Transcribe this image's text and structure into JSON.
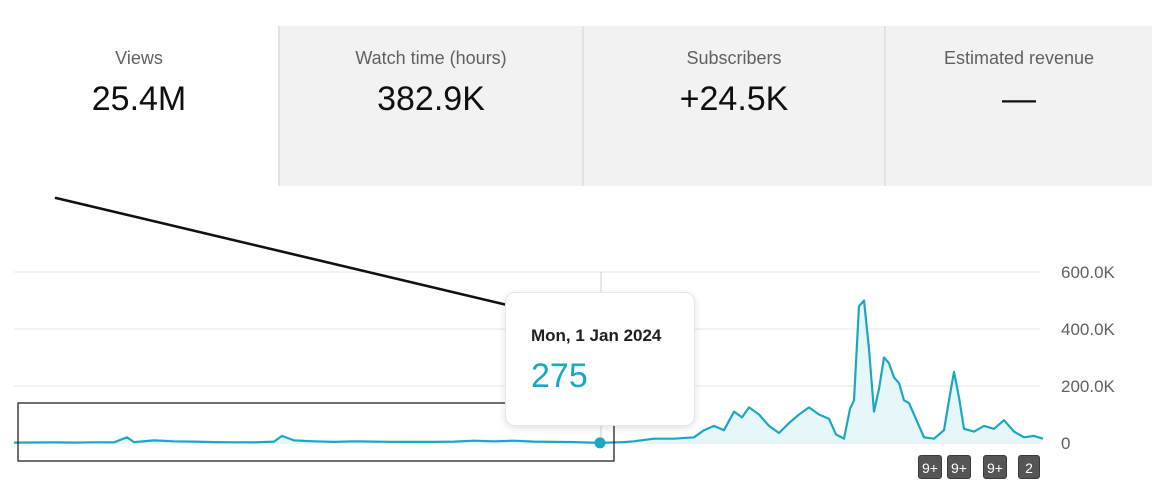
{
  "metrics": [
    {
      "label": "Views",
      "value": "25.4M"
    },
    {
      "label": "Watch time (hours)",
      "value": "382.9K"
    },
    {
      "label": "Subscribers",
      "value": "+24.5K"
    },
    {
      "label": "Estimated revenue",
      "value": "—"
    }
  ],
  "tooltip": {
    "date": "Mon, 1 Jan 2024",
    "value": "275"
  },
  "badges": [
    "9+",
    "9+",
    "9+",
    "2"
  ],
  "colors": {
    "series": "#1aa7c4",
    "area_fill": "#e3f4f8",
    "gridline": "#e5e5e5",
    "annotation": "#111111"
  },
  "chart_data": {
    "type": "area",
    "ylim": [
      0,
      600000
    ],
    "yticks": [
      "600.0K",
      "400.0K",
      "200.0K",
      "0"
    ],
    "series": [
      {
        "points": [
          [
            0,
            1500
          ],
          [
            20,
            1800
          ],
          [
            40,
            2000
          ],
          [
            60,
            1500
          ],
          [
            80,
            2500
          ],
          [
            100,
            2000
          ],
          [
            113,
            20000
          ],
          [
            120,
            3000
          ],
          [
            140,
            9000
          ],
          [
            160,
            6000
          ],
          [
            180,
            5000
          ],
          [
            200,
            3000
          ],
          [
            220,
            2500
          ],
          [
            240,
            2000
          ],
          [
            260,
            5000
          ],
          [
            268,
            25000
          ],
          [
            280,
            9000
          ],
          [
            300,
            6000
          ],
          [
            320,
            4000
          ],
          [
            340,
            6000
          ],
          [
            360,
            5000
          ],
          [
            380,
            4000
          ],
          [
            400,
            4000
          ],
          [
            420,
            4000
          ],
          [
            440,
            5000
          ],
          [
            460,
            8000
          ],
          [
            480,
            6000
          ],
          [
            500,
            8000
          ],
          [
            520,
            5000
          ],
          [
            540,
            4000
          ],
          [
            560,
            3000
          ],
          [
            586,
            275
          ],
          [
            610,
            3000
          ],
          [
            620,
            6000
          ],
          [
            640,
            15000
          ],
          [
            660,
            15000
          ],
          [
            680,
            20000
          ],
          [
            690,
            45000
          ],
          [
            700,
            60000
          ],
          [
            710,
            45000
          ],
          [
            720,
            110000
          ],
          [
            728,
            90000
          ],
          [
            735,
            125000
          ],
          [
            745,
            100000
          ],
          [
            755,
            60000
          ],
          [
            765,
            35000
          ],
          [
            775,
            70000
          ],
          [
            785,
            100000
          ],
          [
            795,
            125000
          ],
          [
            805,
            100000
          ],
          [
            815,
            85000
          ],
          [
            822,
            30000
          ],
          [
            830,
            15000
          ],
          [
            836,
            120000
          ],
          [
            840,
            150000
          ],
          [
            845,
            480000
          ],
          [
            850,
            500000
          ],
          [
            855,
            330000
          ],
          [
            860,
            110000
          ],
          [
            865,
            190000
          ],
          [
            870,
            300000
          ],
          [
            875,
            280000
          ],
          [
            880,
            230000
          ],
          [
            885,
            210000
          ],
          [
            890,
            150000
          ],
          [
            895,
            140000
          ],
          [
            900,
            100000
          ],
          [
            905,
            60000
          ],
          [
            910,
            20000
          ],
          [
            920,
            15000
          ],
          [
            930,
            45000
          ],
          [
            935,
            150000
          ],
          [
            940,
            250000
          ],
          [
            945,
            160000
          ],
          [
            950,
            50000
          ],
          [
            960,
            40000
          ],
          [
            970,
            60000
          ],
          [
            980,
            50000
          ],
          [
            990,
            80000
          ],
          [
            1000,
            40000
          ],
          [
            1010,
            20000
          ],
          [
            1020,
            25000
          ],
          [
            1029,
            15000
          ]
        ]
      }
    ]
  }
}
